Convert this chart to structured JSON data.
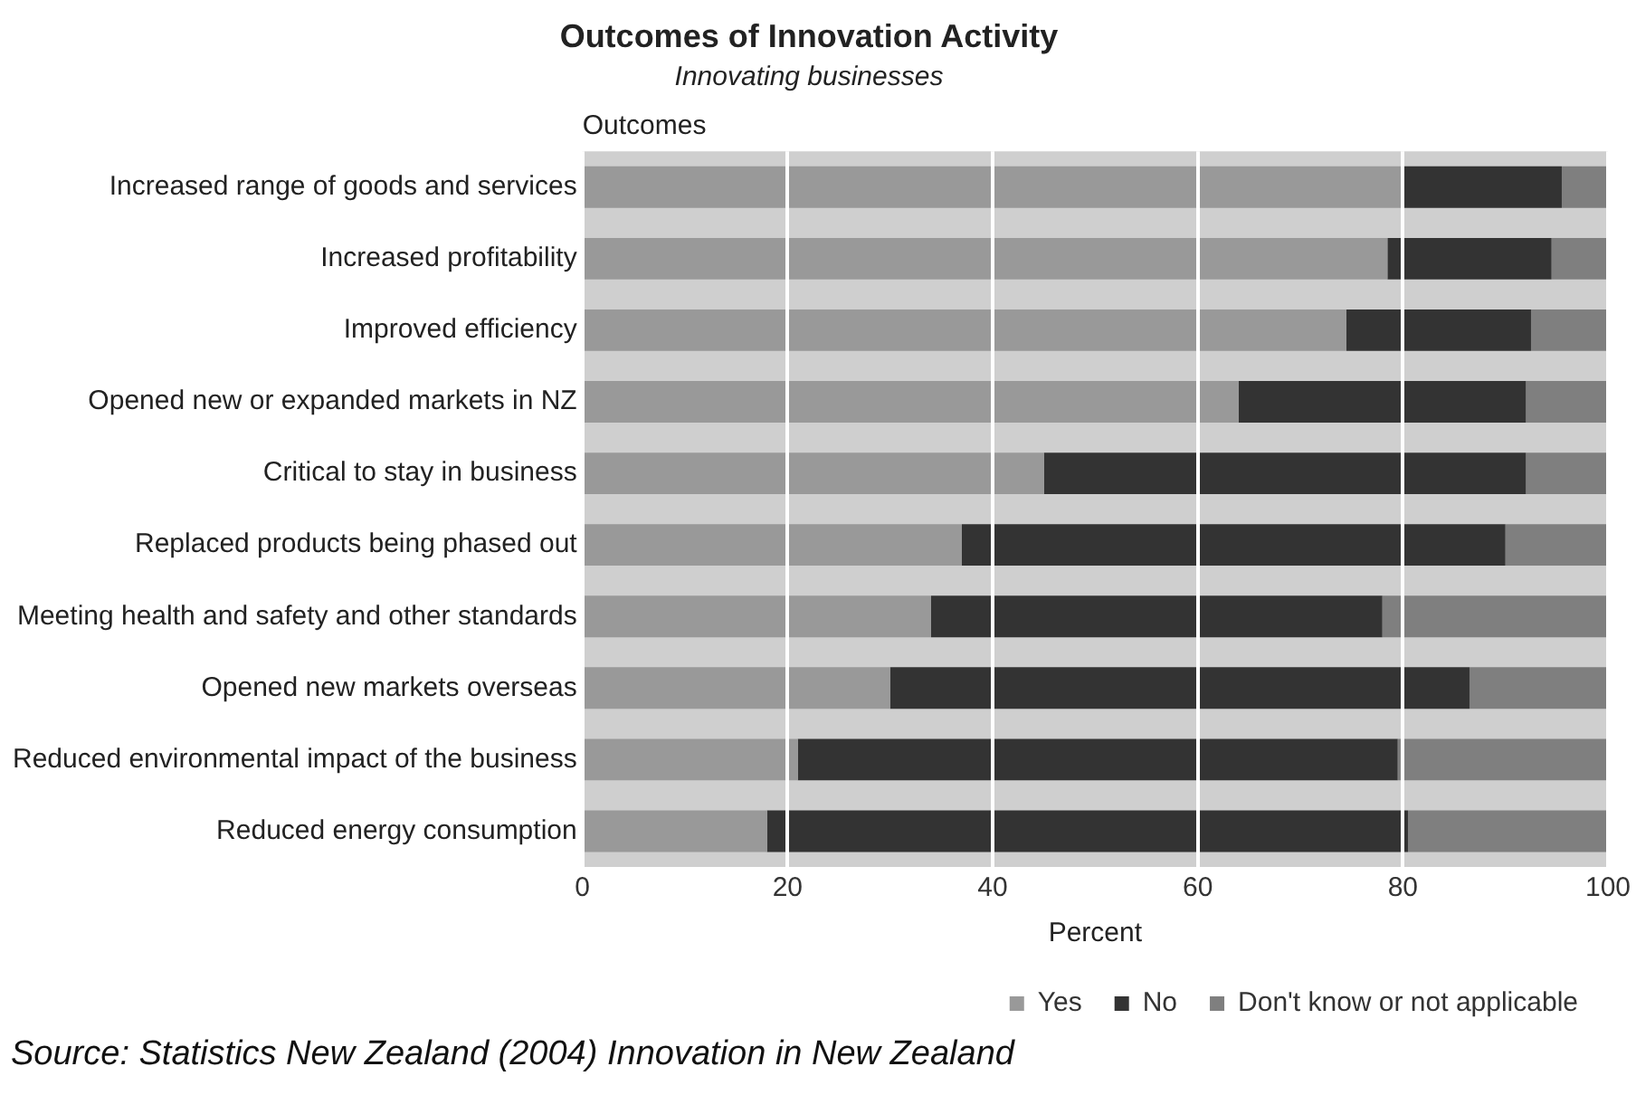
{
  "chart_data": {
    "type": "bar",
    "orientation": "horizontal",
    "stacked": true,
    "title": "Outcomes of Innovation Activity",
    "subtitle": "Innovating businesses",
    "ylabel": "Outcomes",
    "xlabel": "Percent",
    "categories": [
      "Increased range of goods and services",
      "Increased profitability",
      "Improved efficiency",
      "Opened new or expanded markets in NZ",
      "Critical to stay in business",
      "Replaced products being phased out",
      "Meeting health and safety and other standards",
      "Opened new markets overseas",
      "Reduced environmental impact of the business",
      "Reduced energy consumption"
    ],
    "series": [
      {
        "name": "Yes",
        "color": "#999999",
        "values": [
          80,
          78.5,
          74.5,
          64,
          45,
          37,
          34,
          30,
          21,
          18
        ]
      },
      {
        "name": "No",
        "color": "#333333",
        "values": [
          15.5,
          16,
          18,
          28,
          47,
          53,
          44,
          56.5,
          58.5,
          62.5
        ]
      },
      {
        "name": "Don't know or not applicable",
        "color": "#7f7f7f",
        "values": [
          4.5,
          5.5,
          7.5,
          8,
          8,
          10,
          22,
          13.5,
          20.5,
          19.5
        ]
      }
    ],
    "xlim": [
      0,
      100
    ],
    "xticks": [
      0,
      20,
      40,
      60,
      80,
      100
    ],
    "grid": "x",
    "legend": "bottom",
    "annotations": [
      "Source: Statistics New Zealand (2004) Innovation in New Zealand"
    ]
  }
}
